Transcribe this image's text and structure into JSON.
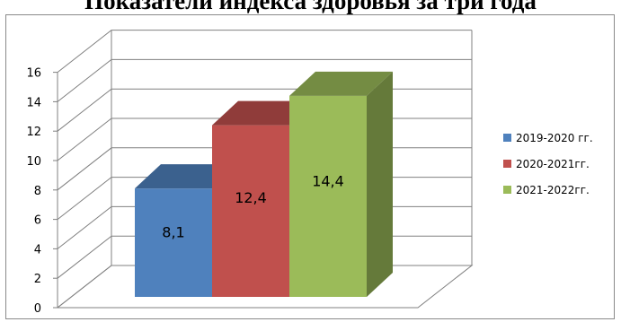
{
  "chart_data": {
    "type": "bar",
    "title": "Показатели индекса здоровья за три года",
    "categories": [
      "2019-2020 гг.",
      "2020-2021гг.",
      "2021-2022гг."
    ],
    "values": [
      8.1,
      12.4,
      14.4
    ],
    "data_labels": [
      "8,1",
      "12,4",
      "14,4"
    ],
    "colors": [
      "#4f81bd",
      "#c0504d",
      "#9bbb59"
    ],
    "ylim": [
      0,
      16
    ],
    "yticks": [
      0,
      2,
      4,
      6,
      8,
      10,
      12,
      14,
      16
    ],
    "grid": true,
    "three_d": true,
    "legend_position": "right"
  }
}
